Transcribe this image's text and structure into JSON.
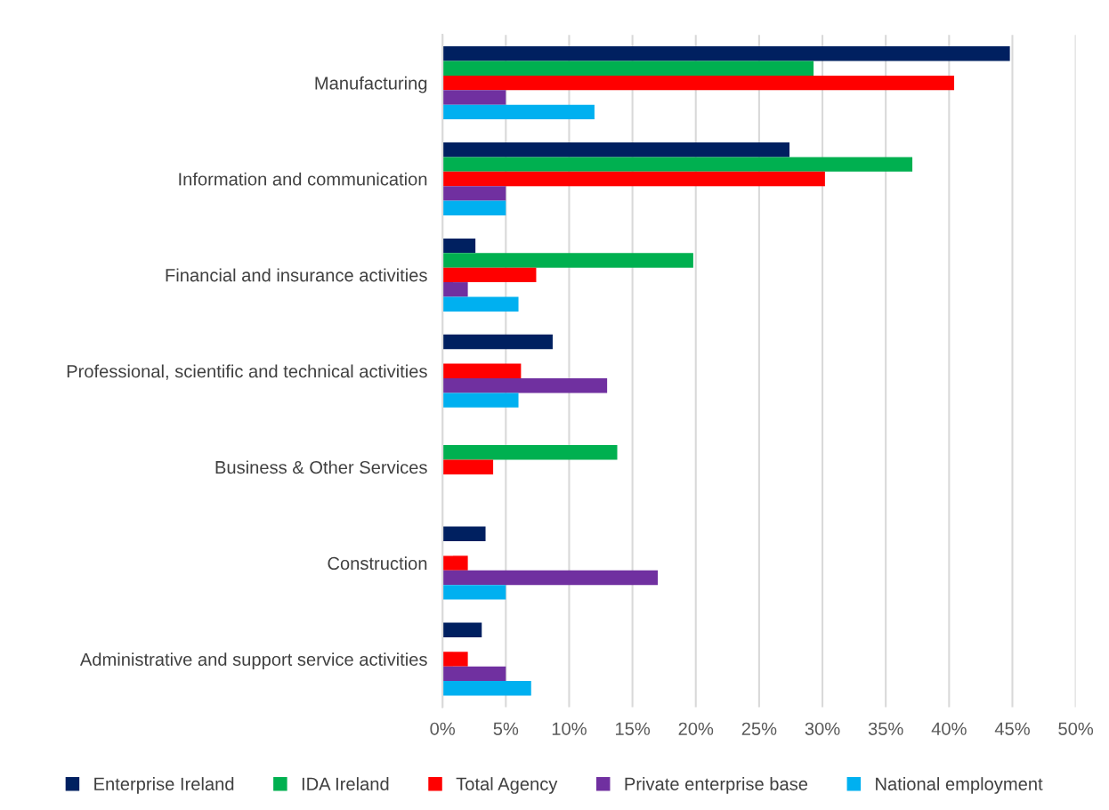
{
  "chart_data": {
    "type": "bar",
    "orientation": "horizontal",
    "categories": [
      "Manufacturing",
      "Information and communication",
      "Financial and insurance activities",
      "Professional, scientific and technical activities",
      "Business & Other Services",
      "Construction",
      "Administrative and support service activities"
    ],
    "series": [
      {
        "name": "Enterprise Ireland",
        "color": "#002060",
        "values": [
          44.8,
          27.4,
          2.6,
          8.7,
          null,
          3.4,
          3.1
        ]
      },
      {
        "name": "IDA Ireland",
        "color": "#00b050",
        "values": [
          29.3,
          37.1,
          19.8,
          null,
          13.8,
          null,
          null
        ]
      },
      {
        "name": "Total Agency",
        "color": "#ff0000",
        "values": [
          40.4,
          30.2,
          7.4,
          6.2,
          4.0,
          2.0,
          2.0
        ]
      },
      {
        "name": "Private enterprise base",
        "color": "#7030a0",
        "values": [
          5.0,
          5.0,
          2.0,
          13.0,
          null,
          17.0,
          5.0
        ]
      },
      {
        "name": "National employment",
        "color": "#00b0f0",
        "values": [
          12.0,
          5.0,
          6.0,
          6.0,
          null,
          5.0,
          7.0
        ]
      }
    ],
    "xlim": [
      0,
      50
    ],
    "xticks": [
      {
        "value": 0,
        "label": "0%"
      },
      {
        "value": 5,
        "label": "5%"
      },
      {
        "value": 10,
        "label": "10%"
      },
      {
        "value": 15,
        "label": "15%"
      },
      {
        "value": 20,
        "label": "20%"
      },
      {
        "value": 25,
        "label": "25%"
      },
      {
        "value": 30,
        "label": "30%"
      },
      {
        "value": 35,
        "label": "35%"
      },
      {
        "value": 40,
        "label": "40%"
      },
      {
        "value": 45,
        "label": "45%"
      },
      {
        "value": 50,
        "label": "50%"
      }
    ],
    "grid": "x",
    "legend": "bottom"
  }
}
